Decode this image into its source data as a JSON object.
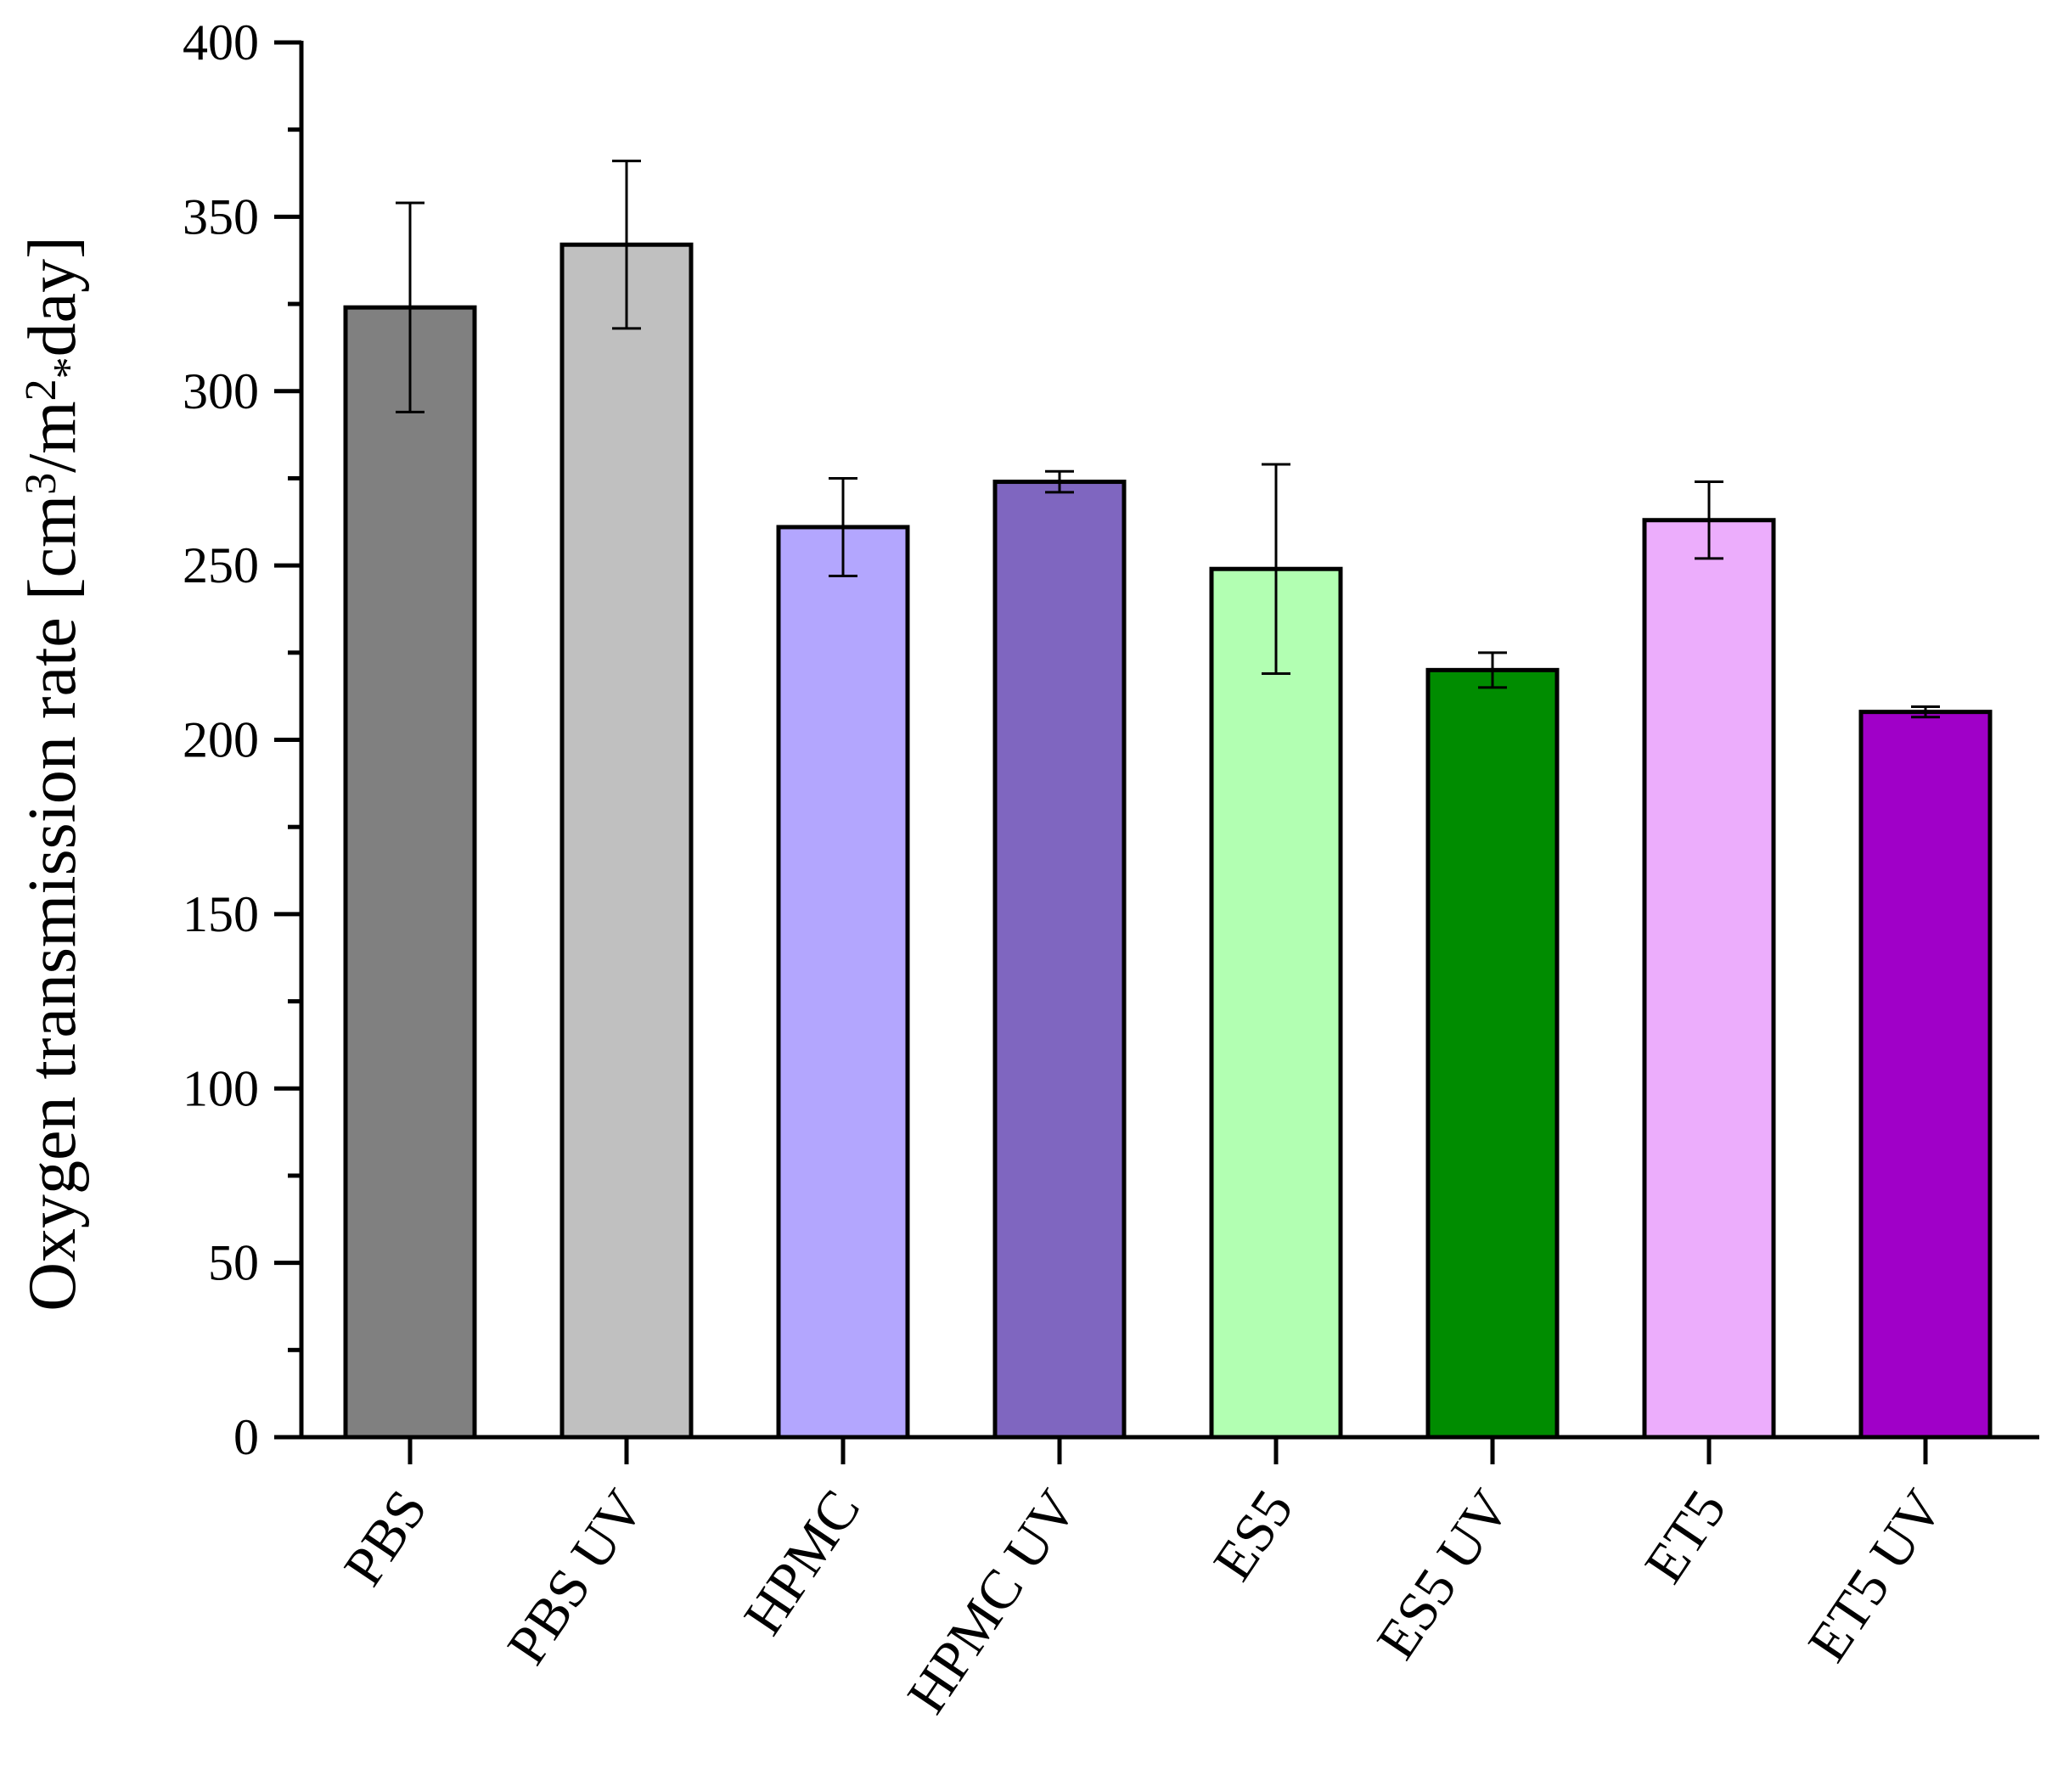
{
  "chart_data": {
    "type": "bar",
    "title": "",
    "xlabel": "",
    "ylabel": {
      "parts": [
        {
          "text": "Oxygen transmission rate [cm",
          "style": "normal"
        },
        {
          "text": "3",
          "style": "sup"
        },
        {
          "text": "/m",
          "style": "normal"
        },
        {
          "text": "2",
          "style": "sup"
        },
        {
          "text": "*",
          "style": "sub"
        },
        {
          "text": "day]",
          "style": "normal"
        }
      ]
    },
    "ylim": [
      0,
      400
    ],
    "yticks": [
      0,
      50,
      100,
      150,
      200,
      250,
      300,
      350,
      400
    ],
    "ytick_labels": [
      "0",
      "50",
      "100",
      "150",
      "200",
      "250",
      "300",
      "350",
      "400"
    ],
    "categories": [
      "PBS",
      "PBS UV",
      "HPMC",
      "HPMC UV",
      "ES5",
      "ES5 UV",
      "ET5",
      "ET5 UV"
    ],
    "values": [
      324,
      342,
      261,
      274,
      249,
      220,
      263,
      208
    ],
    "errors": [
      30,
      24,
      14,
      3,
      30,
      5,
      11,
      1.5
    ],
    "colors": [
      "#808080",
      "#c0c0c0",
      "#b3a6fe",
      "#7f66c0",
      "#b2ffb2",
      "#008c00",
      "#ecadfc",
      "#a000c8"
    ],
    "grid": false,
    "legend": "none"
  }
}
